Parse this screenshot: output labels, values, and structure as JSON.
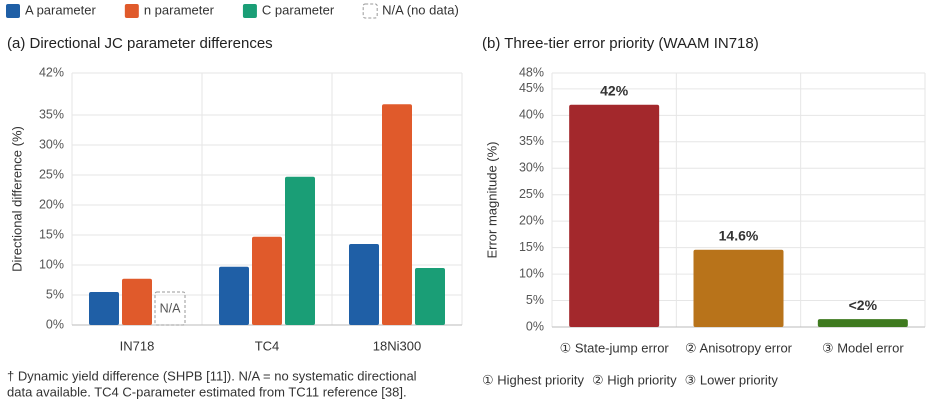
{
  "chart_data": [
    {
      "type": "grouped_bar",
      "title": "(a) Directional JC parameter differences",
      "y_label": "Directional difference (%)",
      "categories": [
        "IN718",
        "TC4",
        "18Ni300"
      ],
      "series": [
        {
          "name": "A parameter",
          "color": "#1f5fa6",
          "values": [
            5.5,
            9.7,
            13.5
          ]
        },
        {
          "name": "n parameter",
          "color": "#e05a2b",
          "values": [
            7.7,
            14.7,
            36.8
          ]
        },
        {
          "name": "C parameter",
          "color": "#1a9e76",
          "values": [
            null,
            24.7,
            9.5
          ]
        }
      ],
      "na_legend": "N/A (no data)",
      "na_label": "N/A",
      "ylim": [
        0,
        42
      ],
      "yticks": [
        {
          "value": 0,
          "label": "0%"
        },
        {
          "value": 5,
          "label": "5%"
        },
        {
          "value": 10,
          "label": "10%"
        },
        {
          "value": 15,
          "label": "15%"
        },
        {
          "value": 20,
          "label": "20%"
        },
        {
          "value": 25,
          "label": "25%"
        },
        {
          "value": 30,
          "label": "30%"
        },
        {
          "value": 35,
          "label": "35%"
        },
        {
          "value": 42,
          "label": "42%"
        }
      ],
      "grid": true,
      "footnote": [
        "† Dynamic yield difference (SHPB [11]). N/A = no systematic directional",
        "data available. TC4 C-parameter estimated from TC11 reference [38]."
      ]
    },
    {
      "type": "bar",
      "title": "(b) Three-tier error priority (WAAM IN718)",
      "y_label": "Error magnitude (%)",
      "categories": [
        "① State-jump error",
        "② Anisotropy error",
        "③ Model error"
      ],
      "values": [
        42,
        14.6,
        1.5
      ],
      "value_labels": [
        "42%",
        "14.6%",
        "<2%"
      ],
      "colors": [
        "#a3282c",
        "#b8731a",
        "#3f7a1f"
      ],
      "ylim": [
        0,
        48
      ],
      "yticks": [
        {
          "value": 0,
          "label": "0%"
        },
        {
          "value": 5,
          "label": "5%"
        },
        {
          "value": 10,
          "label": "10%"
        },
        {
          "value": 15,
          "label": "15%"
        },
        {
          "value": 20,
          "label": "20%"
        },
        {
          "value": 25,
          "label": "25%"
        },
        {
          "value": 30,
          "label": "30%"
        },
        {
          "value": 35,
          "label": "35%"
        },
        {
          "value": 40,
          "label": "40%"
        },
        {
          "value": 45,
          "label": "45%"
        },
        {
          "value": 48,
          "label": "48%"
        }
      ],
      "grid": true,
      "notes": [
        "① Highest priority",
        "② High priority",
        "③ Lower priority"
      ]
    }
  ]
}
